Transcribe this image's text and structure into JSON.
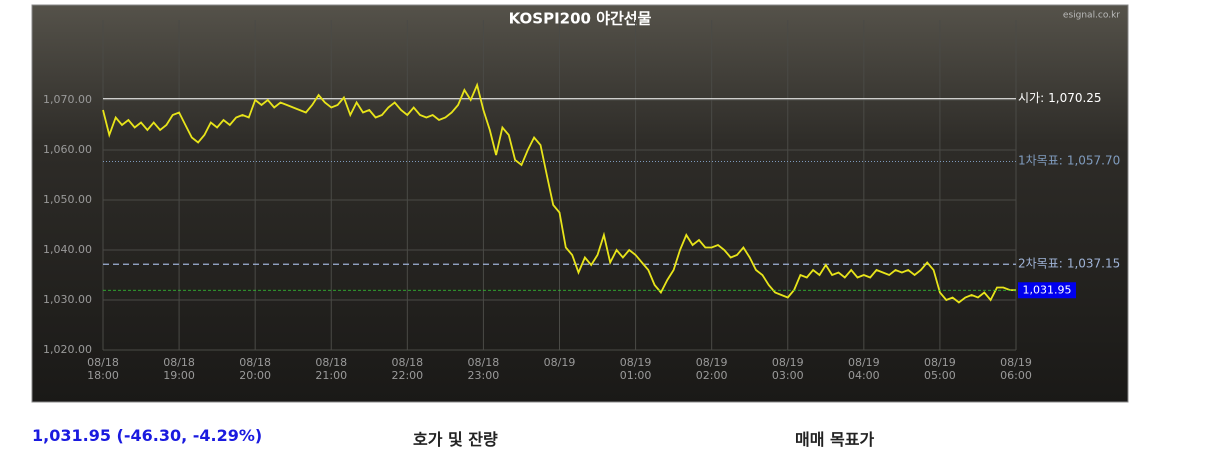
{
  "chart_data": {
    "type": "line",
    "title": "KOSPI200 야간선물",
    "source": "esignal.co.kr",
    "color": "#e8e41a",
    "x": [
      0,
      5,
      10,
      15,
      20,
      25,
      30,
      35,
      40,
      45,
      50,
      55,
      60,
      65,
      70,
      75,
      80,
      85,
      90,
      95,
      100,
      105,
      110,
      115,
      120,
      125,
      130,
      135,
      140,
      145,
      150,
      155,
      160,
      165,
      170,
      175,
      180,
      185,
      190,
      195,
      200,
      205,
      210,
      215,
      220,
      225,
      230,
      235,
      240,
      245,
      250,
      255,
      260,
      265,
      270,
      275,
      280,
      285,
      290,
      295,
      300,
      305,
      310,
      315,
      320,
      325,
      330,
      335,
      340,
      345,
      350,
      355,
      360,
      365,
      370,
      375,
      380,
      385,
      390,
      395,
      400,
      405,
      410,
      415,
      420,
      425,
      430,
      435,
      440,
      445,
      450,
      455,
      460,
      465,
      470,
      475,
      480,
      485,
      490,
      495,
      500,
      505,
      510,
      515,
      520,
      525,
      530,
      535,
      540,
      545,
      550,
      555,
      560,
      565,
      570,
      575,
      580,
      585,
      590,
      595,
      600,
      605,
      610,
      615,
      620,
      625,
      630,
      635,
      640,
      645,
      650,
      655,
      660,
      665,
      670,
      675,
      680,
      685,
      690,
      695,
      700,
      705,
      710,
      715,
      720
    ],
    "values": [
      1068,
      1063,
      1066.5,
      1065,
      1066,
      1064.5,
      1065.5,
      1064,
      1065.5,
      1064,
      1065,
      1067,
      1067.5,
      1065,
      1062.5,
      1061.5,
      1063,
      1065.5,
      1064.5,
      1066,
      1065,
      1066.5,
      1067,
      1066.5,
      1070,
      1069,
      1070,
      1068.5,
      1069.5,
      1069,
      1068.5,
      1068,
      1067.5,
      1069,
      1071,
      1069.5,
      1068.5,
      1069,
      1070.5,
      1067,
      1069.5,
      1067.5,
      1068,
      1066.5,
      1067,
      1068.5,
      1069.5,
      1068,
      1067,
      1068.5,
      1067,
      1066.5,
      1067,
      1066,
      1066.5,
      1067.5,
      1069,
      1072,
      1070,
      1073,
      1068,
      1064,
      1059,
      1064.5,
      1063,
      1058,
      1057,
      1060,
      1062.5,
      1061,
      1055,
      1049,
      1047.5,
      1040.5,
      1039,
      1035.5,
      1038.5,
      1037,
      1039,
      1043,
      1037.5,
      1040,
      1038.5,
      1040,
      1039,
      1037.5,
      1036,
      1033,
      1031.5,
      1034,
      1036,
      1040,
      1043,
      1041,
      1042,
      1040.5,
      1040.5,
      1041,
      1040,
      1038.5,
      1039,
      1040.5,
      1038.5,
      1036,
      1035,
      1033,
      1031.5,
      1031,
      1030.5,
      1032,
      1035,
      1034.5,
      1036,
      1035,
      1037,
      1035,
      1035.5,
      1034.5,
      1036,
      1034.5,
      1035,
      1034.5,
      1036,
      1035.5,
      1035,
      1036,
      1035.5,
      1036,
      1035,
      1036,
      1037.5,
      1036,
      1031.5,
      1030,
      1030.5,
      1029.5,
      1030.5,
      1031,
      1030.5,
      1031.5,
      1030,
      1032.5,
      1032.5,
      1032,
      1031.95
    ],
    "xlim": [
      0,
      720
    ],
    "xticks": [
      {
        "value": 0,
        "label": "08/18\n18:00"
      },
      {
        "value": 60,
        "label": "08/18\n19:00"
      },
      {
        "value": 120,
        "label": "08/18\n20:00"
      },
      {
        "value": 180,
        "label": "08/18\n21:00"
      },
      {
        "value": 240,
        "label": "08/18\n22:00"
      },
      {
        "value": 300,
        "label": "08/18\n23:00"
      },
      {
        "value": 360,
        "label": "08/19"
      },
      {
        "value": 420,
        "label": "08/19\n01:00"
      },
      {
        "value": 480,
        "label": "08/19\n02:00"
      },
      {
        "value": 540,
        "label": "08/19\n03:00"
      },
      {
        "value": 600,
        "label": "08/19\n04:00"
      },
      {
        "value": 660,
        "label": "08/19\n05:00"
      },
      {
        "value": 720,
        "label": "08/19\n06:00"
      }
    ],
    "ylim": [
      1020,
      1086
    ],
    "yticks": [
      {
        "value": 1020,
        "label": "1,020.00"
      },
      {
        "value": 1030,
        "label": "1,030.00"
      },
      {
        "value": 1040,
        "label": "1,040.00"
      },
      {
        "value": 1050,
        "label": "1,050.00"
      },
      {
        "value": 1060,
        "label": "1,060.00"
      },
      {
        "value": 1070,
        "label": "1,070.00"
      }
    ],
    "grid": true,
    "reference_lines": [
      {
        "label": "시가:",
        "value": 1070.25,
        "value_label": "1,070.25",
        "color": "#ffffff",
        "style": "solid"
      },
      {
        "label": "1차목표:",
        "value": 1057.7,
        "value_label": "1,057.70",
        "color": "#7f9bbd",
        "style": "dotted"
      },
      {
        "label": "2차목표:",
        "value": 1037.15,
        "value_label": "1,037.15",
        "color": "#9fb3d6",
        "style": "dashed"
      }
    ],
    "current": {
      "value": 1031.95,
      "value_label": "1,031.95",
      "color": "#33cc33",
      "box_color": "#0000ee"
    }
  },
  "footer": {
    "quote": "1,031.95 (-46.30, -4.29%)",
    "orderbook": "호가 및 잔량",
    "targets": "매매 목표가"
  }
}
